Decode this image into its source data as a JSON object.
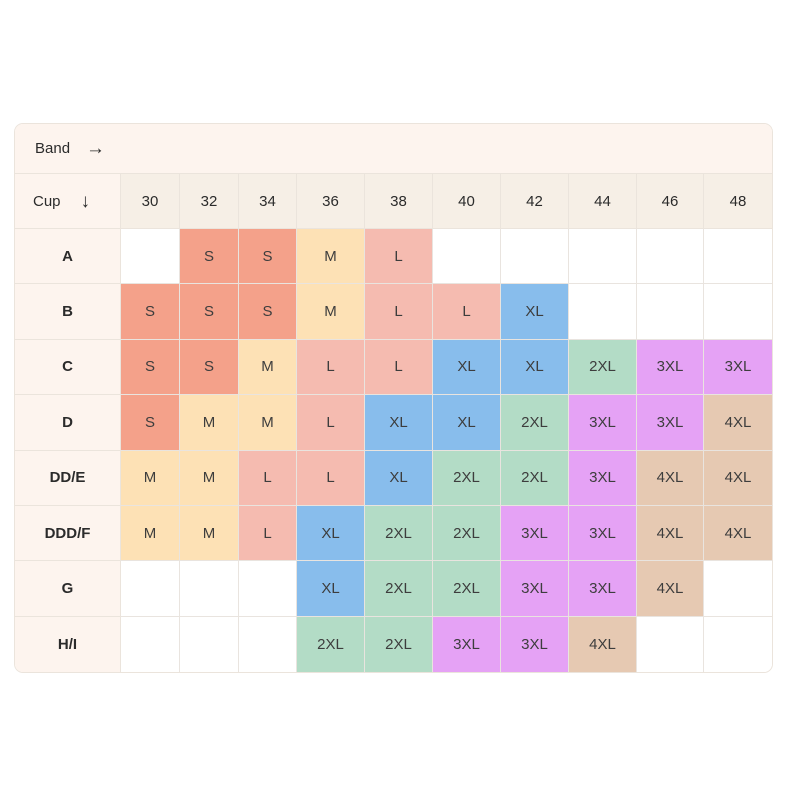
{
  "band_label": "Band",
  "cup_label": "Cup",
  "band_sizes": [
    "30",
    "32",
    "34",
    "36",
    "38",
    "40",
    "42",
    "44",
    "46",
    "48"
  ],
  "colors": {
    "S": "#f4a18a",
    "M": "#fde1b5",
    "L": "#f5bbb0",
    "XL": "#88bdec",
    "2XL": "#b3dcc6",
    "3XL": "#e5a2f5",
    "4XL": "#e6c9b2",
    "empty": "#ffffff"
  },
  "rows": [
    {
      "cup": "A",
      "sizes": [
        "",
        "S",
        "S",
        "M",
        "L",
        "",
        "",
        "",
        "",
        ""
      ]
    },
    {
      "cup": "B",
      "sizes": [
        "S",
        "S",
        "S",
        "M",
        "L",
        "L",
        "XL",
        "",
        "",
        ""
      ]
    },
    {
      "cup": "C",
      "sizes": [
        "S",
        "S",
        "M",
        "L",
        "L",
        "XL",
        "XL",
        "2XL",
        "3XL",
        "3XL"
      ]
    },
    {
      "cup": "D",
      "sizes": [
        "S",
        "M",
        "M",
        "L",
        "XL",
        "XL",
        "2XL",
        "3XL",
        "3XL",
        "4XL"
      ]
    },
    {
      "cup": "DD/E",
      "sizes": [
        "M",
        "M",
        "L",
        "L",
        "XL",
        "2XL",
        "2XL",
        "3XL",
        "4XL",
        "4XL"
      ]
    },
    {
      "cup": "DDD/F",
      "sizes": [
        "M",
        "M",
        "L",
        "XL",
        "2XL",
        "2XL",
        "3XL",
        "3XL",
        "4XL",
        "4XL"
      ]
    },
    {
      "cup": "G",
      "sizes": [
        "",
        "",
        "",
        "XL",
        "2XL",
        "2XL",
        "3XL",
        "3XL",
        "4XL",
        ""
      ]
    },
    {
      "cup": "H/I",
      "sizes": [
        "",
        "",
        "",
        "2XL",
        "2XL",
        "3XL",
        "3XL",
        "4XL",
        "",
        ""
      ]
    }
  ]
}
